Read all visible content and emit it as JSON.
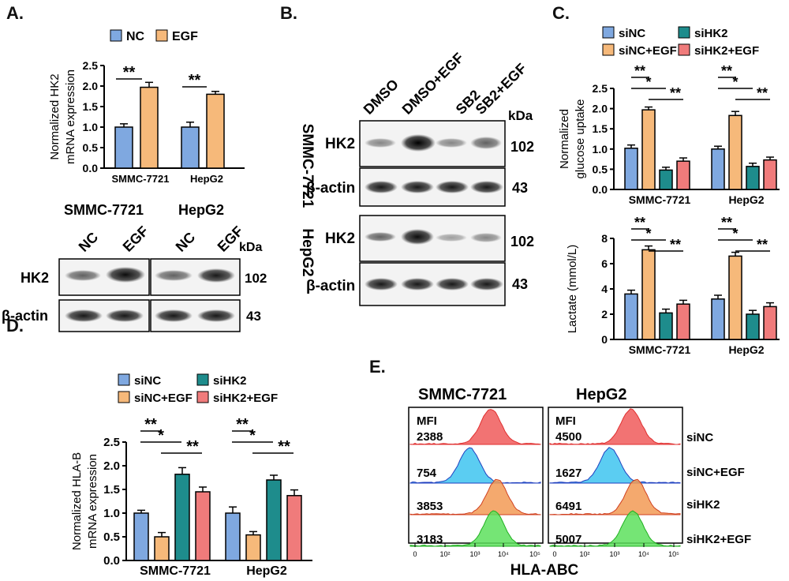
{
  "panels": {
    "A": {
      "letter": "A."
    },
    "B": {
      "letter": "B."
    },
    "C": {
      "letter": "C."
    },
    "D": {
      "letter": "D."
    },
    "E": {
      "letter": "E."
    }
  },
  "colors": {
    "nc": "#7fa8e0",
    "egf": "#f6b97a",
    "sinc": "#7fa8e0",
    "sinc_egf": "#f6b97a",
    "sihk2": "#1e8c8c",
    "sihk2_egf": "#f07b7b"
  },
  "panelA": {
    "legend": [
      "NC",
      "EGF"
    ],
    "ylabel_line1": "Normalized HK2",
    "ylabel_line2": "mRNA expression",
    "yticks": [
      "0.0",
      "0.5",
      "1.0",
      "1.5",
      "2.0",
      "2.5"
    ],
    "groups": [
      "SMMC-7721",
      "HepG2"
    ],
    "sig": [
      "**",
      "**"
    ],
    "blot": {
      "cell_lines": [
        "SMMC-7721",
        "HepG2"
      ],
      "lanes": [
        "NC",
        "EGF",
        "NC",
        "EGF"
      ],
      "rows": [
        "HK2",
        "β-actin"
      ],
      "kda_label": "kDa",
      "kda": [
        "102",
        "43"
      ]
    }
  },
  "panelB": {
    "lanes": [
      "DMSO",
      "DMSO+EGF",
      "SB2",
      "SB2+EGF"
    ],
    "kda_label": "kDa",
    "cell_lines": [
      "SMMC-7721",
      "HepG2"
    ],
    "rows": [
      "HK2",
      "β-actin"
    ],
    "kda": [
      "102",
      "43"
    ]
  },
  "panelC": {
    "legend": [
      "siNC",
      "siHK2",
      "siNC+EGF",
      "siHK2+EGF"
    ],
    "top_ylabel_line1": "Normalized",
    "top_ylabel_line2": "glucose uptake",
    "top_yticks": [
      "0.0",
      "0.5",
      "1.0",
      "1.5",
      "2.0",
      "2.5"
    ],
    "bottom_ylabel": "Lactate (mmol/L)",
    "bottom_yticks": [
      "0",
      "2",
      "4",
      "6",
      "8"
    ],
    "groups": [
      "SMMC-7721",
      "HepG2"
    ],
    "sig": [
      "**",
      "*",
      "**"
    ]
  },
  "panelD": {
    "legend": [
      "siNC",
      "siHK2",
      "siNC+EGF",
      "siHK2+EGF"
    ],
    "ylabel_line1": "Normalized HLA-B",
    "ylabel_line2": "mRNA expression",
    "yticks": [
      "0.0",
      "0.5",
      "1.0",
      "1.5",
      "2.0",
      "2.5"
    ],
    "groups": [
      "SMMC-7721",
      "HepG2"
    ],
    "sig": [
      "**",
      "*",
      "**"
    ]
  },
  "panelE": {
    "titles": [
      "SMMC-7721",
      "HepG2"
    ],
    "mfi_label": "MFI",
    "mfi_smmc": [
      "2388",
      "754",
      "3853",
      "3183"
    ],
    "mfi_hepg2": [
      "4500",
      "1627",
      "6491",
      "5007"
    ],
    "conditions": [
      "siNC",
      "siNC+EGF",
      "siHK2",
      "siHK2+EGF"
    ],
    "xlabel": "HLA-ABC",
    "xticks": [
      "0",
      "10²",
      "10³",
      "10⁴",
      "10⁵"
    ]
  },
  "chart_data": [
    {
      "type": "bar",
      "panel": "A",
      "categories": [
        "SMMC-7721",
        "HepG2"
      ],
      "series": [
        {
          "name": "NC",
          "values": [
            1.0,
            1.0
          ],
          "errors": [
            0.08,
            0.12
          ]
        },
        {
          "name": "EGF",
          "values": [
            1.97,
            1.8
          ],
          "errors": [
            0.12,
            0.07
          ]
        }
      ],
      "ylabel": "Normalized HK2 mRNA expression",
      "ylim": [
        0,
        2.5
      ]
    },
    {
      "type": "bar",
      "panel": "C-top",
      "categories": [
        "SMMC-7721",
        "HepG2"
      ],
      "series": [
        {
          "name": "siNC",
          "values": [
            1.02,
            1.0
          ],
          "errors": [
            0.08,
            0.07
          ]
        },
        {
          "name": "siNC+EGF",
          "values": [
            1.97,
            1.83
          ],
          "errors": [
            0.07,
            0.1
          ]
        },
        {
          "name": "siHK2",
          "values": [
            0.48,
            0.57
          ],
          "errors": [
            0.07,
            0.08
          ]
        },
        {
          "name": "siHK2+EGF",
          "values": [
            0.7,
            0.73
          ],
          "errors": [
            0.08,
            0.07
          ]
        }
      ],
      "ylabel": "Normalized glucose uptake",
      "ylim": [
        0,
        2.5
      ]
    },
    {
      "type": "bar",
      "panel": "C-bottom",
      "categories": [
        "SMMC-7721",
        "HepG2"
      ],
      "series": [
        {
          "name": "siNC",
          "values": [
            3.6,
            3.2
          ],
          "errors": [
            0.3,
            0.3
          ]
        },
        {
          "name": "siNC+EGF",
          "values": [
            7.1,
            6.6
          ],
          "errors": [
            0.3,
            0.3
          ]
        },
        {
          "name": "siHK2",
          "values": [
            2.1,
            2.0
          ],
          "errors": [
            0.3,
            0.3
          ]
        },
        {
          "name": "siHK2+EGF",
          "values": [
            2.8,
            2.6
          ],
          "errors": [
            0.3,
            0.3
          ]
        }
      ],
      "ylabel": "Lactate (mmol/L)",
      "ylim": [
        0,
        8
      ]
    },
    {
      "type": "bar",
      "panel": "D",
      "categories": [
        "SMMC-7721",
        "HepG2"
      ],
      "series": [
        {
          "name": "siNC",
          "values": [
            1.0,
            1.0
          ],
          "errors": [
            0.06,
            0.13
          ]
        },
        {
          "name": "siNC+EGF",
          "values": [
            0.5,
            0.54
          ],
          "errors": [
            0.09,
            0.07
          ]
        },
        {
          "name": "siHK2",
          "values": [
            1.82,
            1.7
          ],
          "errors": [
            0.14,
            0.1
          ]
        },
        {
          "name": "siHK2+EGF",
          "values": [
            1.45,
            1.37
          ],
          "errors": [
            0.1,
            0.12
          ]
        }
      ],
      "ylabel": "Normalized HLA-B mRNA expression",
      "ylim": [
        0,
        2.5
      ]
    }
  ]
}
